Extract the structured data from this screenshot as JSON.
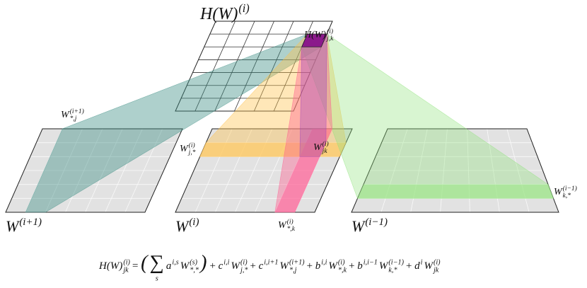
{
  "labels": {
    "top_title": {
      "base": "H(W)",
      "sup": "(i)"
    },
    "top_cell": {
      "base": "H(W)",
      "sup": "(i)",
      "sub": "j,k"
    },
    "left_col": {
      "base": "W",
      "sup": "(i+1)",
      "sub": "*,j"
    },
    "mid_row": {
      "base": "W",
      "sup": "(i)",
      "sub": "j,*"
    },
    "mid_cell": {
      "base": "W",
      "sup": "(i)",
      "sub": "jk"
    },
    "left_title": {
      "base": "W",
      "sup": "(i+1)"
    },
    "mid_title": {
      "base": "W",
      "sup": "(i)"
    },
    "mid_col": {
      "base": "W",
      "sup": "(i)",
      "sub": "*,k"
    },
    "right_title": {
      "base": "W",
      "sup": "(i−1)"
    },
    "right_row": {
      "base": "W",
      "sup": "(i−1)",
      "sub": "k,*"
    }
  },
  "formula": [
    {
      "base": "H(W)",
      "sup": "(i)",
      "sub": "jk",
      "color": "#8b1a8b"
    },
    {
      "base": "="
    },
    {
      "base": "("
    },
    {
      "base": "∑",
      "sub": "s"
    },
    {
      "base": "a",
      "sup": "i,s"
    },
    {
      "base": "W",
      "sup": "(s)",
      "sub": "*,*"
    },
    {
      "base": ")"
    },
    {
      "base": "+"
    },
    {
      "base": "c",
      "sup": "i,i",
      "color": "#f0a800"
    },
    {
      "base": "W",
      "sup": "(i)",
      "sub": "j,*"
    },
    {
      "base": "+"
    },
    {
      "base": "c",
      "sup": "i,i+1",
      "color": "#2a8a80"
    },
    {
      "base": "W",
      "sup": "(i+1)",
      "sub": "*,j"
    },
    {
      "base": "+"
    },
    {
      "base": "b",
      "sup": "i,i",
      "color": "#e8407a"
    },
    {
      "base": "W",
      "sup": "(i)",
      "sub": "*,k"
    },
    {
      "base": "+"
    },
    {
      "base": "b",
      "sup": "i,i−1",
      "color": "#66cc44"
    },
    {
      "base": "W",
      "sup": "(i−1)",
      "sub": "k,*"
    },
    {
      "base": "+"
    },
    {
      "base": "d",
      "sup": "i",
      "color": "#1aa0d8"
    },
    {
      "base": "W",
      "sup": "(i)",
      "sub": "jk"
    }
  ]
}
